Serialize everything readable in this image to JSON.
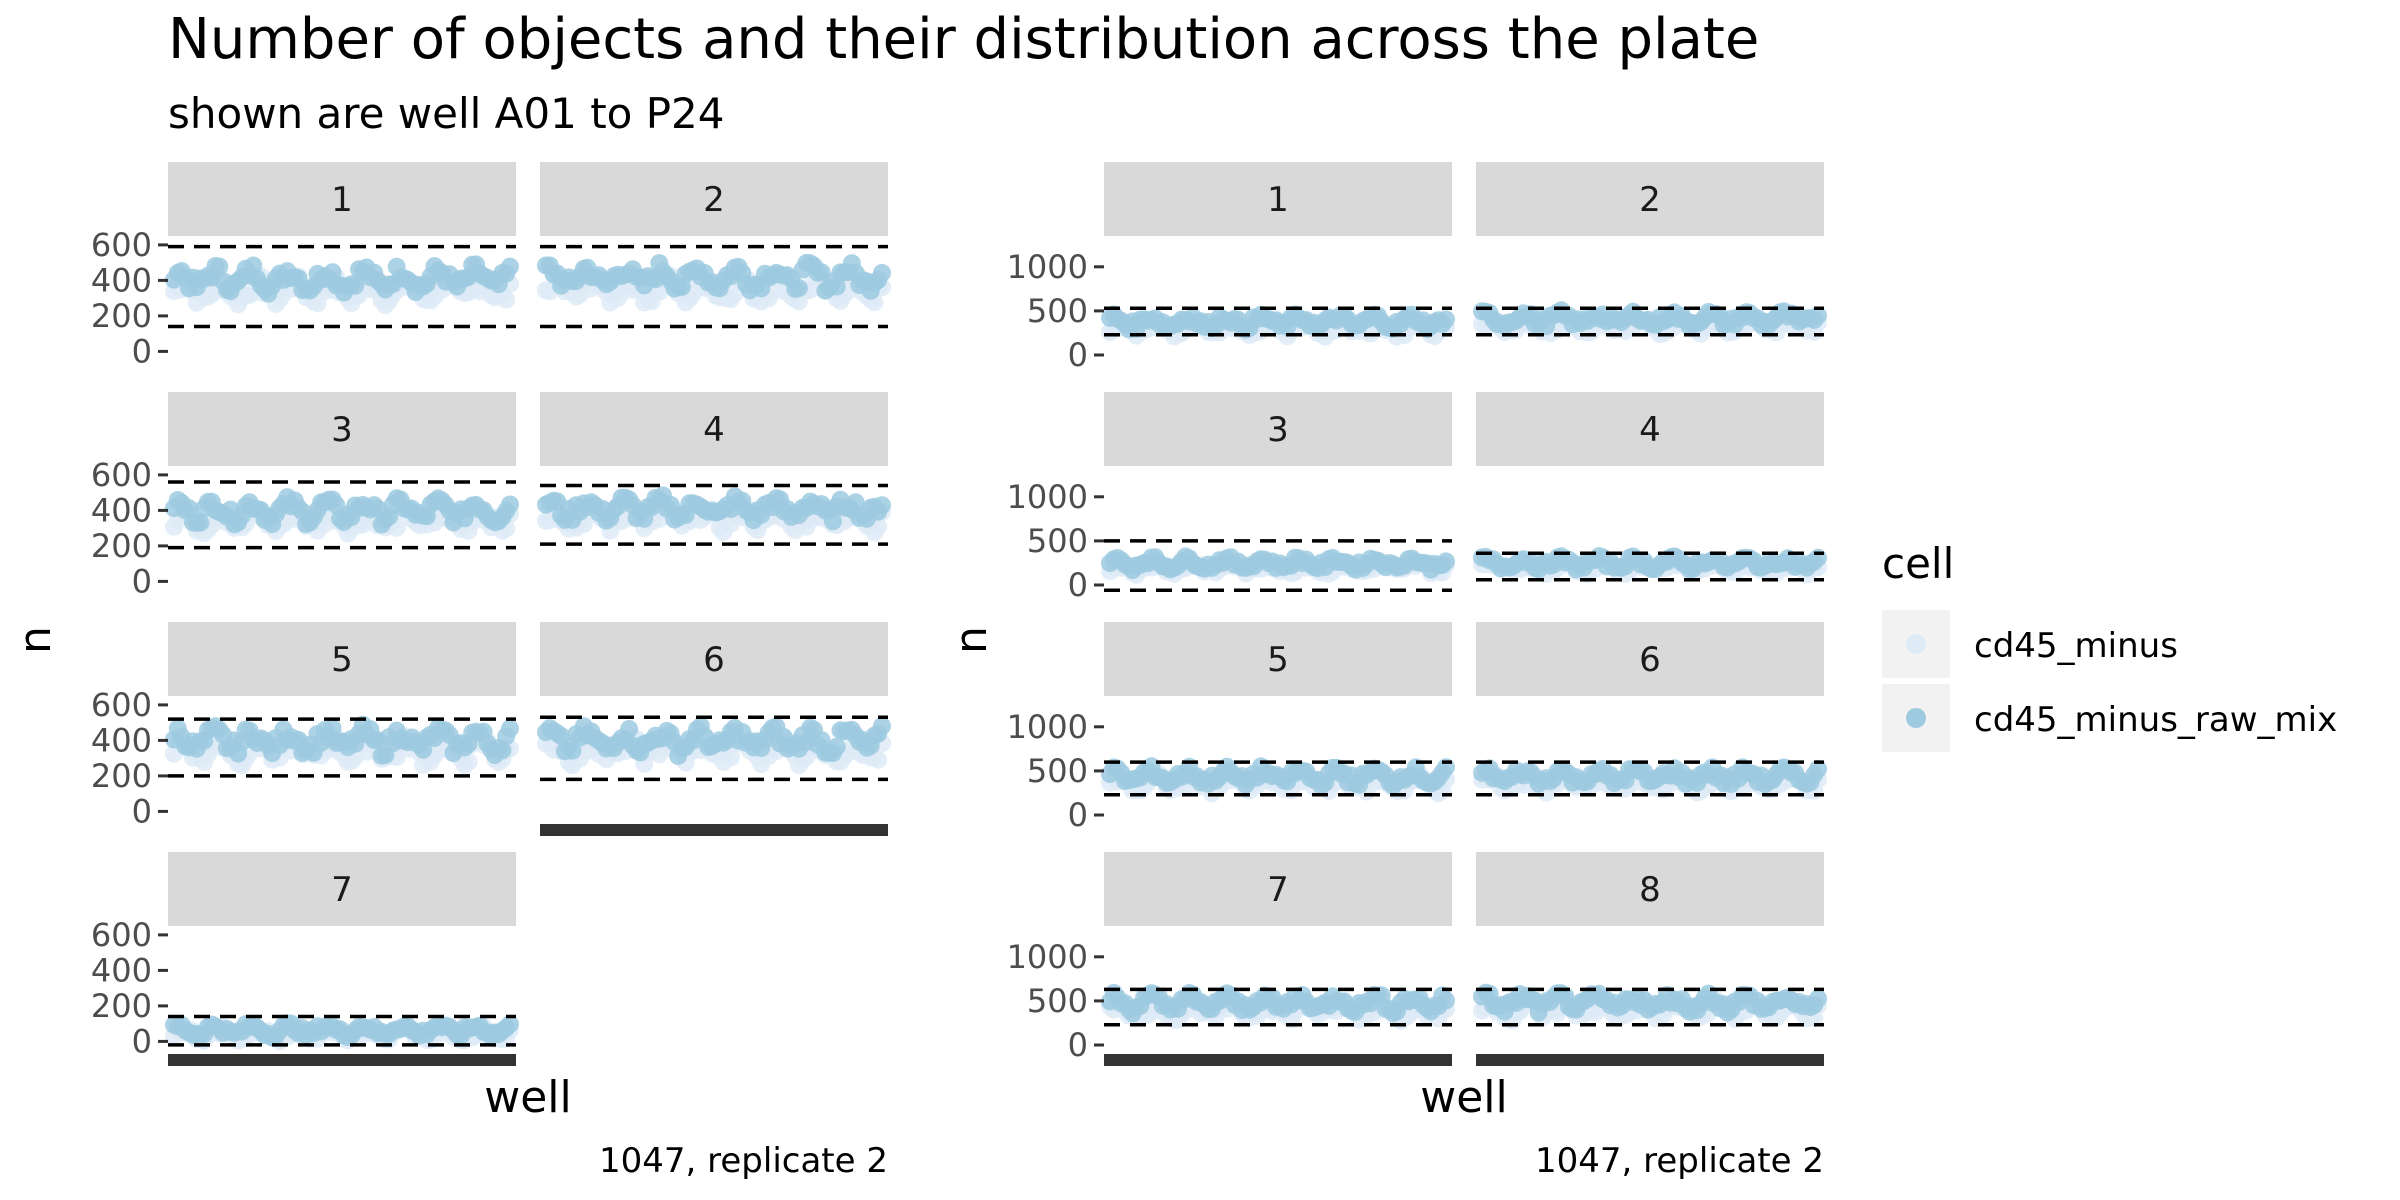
{
  "title": "Number of objects and their distribution across the plate",
  "subtitle": "shown are well A01 to P24",
  "legend": {
    "title": "cell",
    "items": [
      {
        "label": "cd45_minus",
        "color": "#deebf7"
      },
      {
        "label": "cd45_minus_raw_mix",
        "color": "#9ecae1"
      }
    ]
  },
  "colors": {
    "strip_bg": "#d9d9d9",
    "axis_text": "#4d4d4d",
    "threshold_line": "#000000",
    "tick": "#333333"
  },
  "chart_data": [
    {
      "type": "scatter",
      "xlabel": "well",
      "ylabel": "n",
      "caption": "1047, replicate 2",
      "y_ticks": [
        0,
        200,
        400,
        600
      ],
      "ylim": [
        -60,
        650
      ],
      "x_range": [
        "A01",
        "P24"
      ],
      "panels": [
        {
          "label": "1",
          "center": 360,
          "spread": 100,
          "mix_offset": 50,
          "thresholds": [
            140,
            590
          ]
        },
        {
          "label": "2",
          "center": 370,
          "spread": 100,
          "mix_offset": 50,
          "thresholds": [
            140,
            590
          ]
        },
        {
          "label": "3",
          "center": 360,
          "spread": 90,
          "mix_offset": 40,
          "thresholds": [
            190,
            560
          ]
        },
        {
          "label": "4",
          "center": 370,
          "spread": 90,
          "mix_offset": 40,
          "thresholds": [
            210,
            540
          ]
        },
        {
          "label": "5",
          "center": 360,
          "spread": 100,
          "mix_offset": 40,
          "thresholds": [
            200,
            520
          ]
        },
        {
          "label": "6",
          "center": 360,
          "spread": 100,
          "mix_offset": 40,
          "thresholds": [
            180,
            530
          ]
        },
        {
          "label": "7",
          "center": 50,
          "spread": 50,
          "mix_offset": 15,
          "thresholds": [
            -20,
            140
          ]
        }
      ]
    },
    {
      "type": "scatter",
      "xlabel": "well",
      "ylabel": "n",
      "caption": "1047, replicate 2",
      "y_ticks": [
        0,
        500,
        1000
      ],
      "ylim": [
        -80,
        1350
      ],
      "x_range": [
        "A01",
        "P24"
      ],
      "panels": [
        {
          "label": "1",
          "center": 320,
          "spread": 110,
          "mix_offset": 60,
          "thresholds": [
            230,
            530
          ]
        },
        {
          "label": "2",
          "center": 350,
          "spread": 110,
          "mix_offset": 60,
          "thresholds": [
            230,
            530
          ]
        },
        {
          "label": "3",
          "center": 210,
          "spread": 90,
          "mix_offset": 40,
          "thresholds": [
            -60,
            500
          ]
        },
        {
          "label": "4",
          "center": 210,
          "spread": 90,
          "mix_offset": 40,
          "thresholds": [
            60,
            360
          ]
        },
        {
          "label": "5",
          "center": 380,
          "spread": 130,
          "mix_offset": 60,
          "thresholds": [
            230,
            600
          ]
        },
        {
          "label": "6",
          "center": 380,
          "spread": 130,
          "mix_offset": 60,
          "thresholds": [
            230,
            600
          ]
        },
        {
          "label": "7",
          "center": 420,
          "spread": 140,
          "mix_offset": 60,
          "thresholds": [
            230,
            630
          ]
        },
        {
          "label": "8",
          "center": 420,
          "spread": 140,
          "mix_offset": 60,
          "thresholds": [
            230,
            630
          ]
        }
      ]
    }
  ]
}
